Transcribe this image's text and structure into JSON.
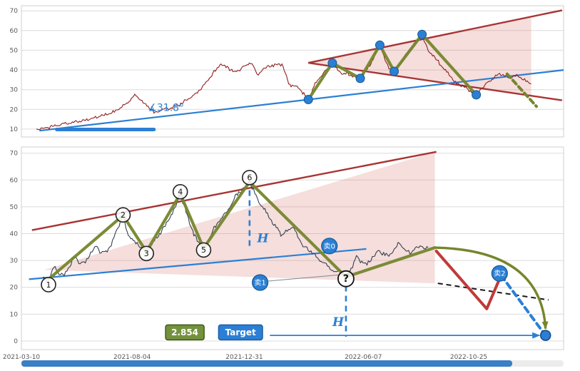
{
  "window": {
    "background": "#ffffff"
  },
  "colors": {
    "blue": "#2b7fd4",
    "green": "#75862c",
    "red": "#a83434",
    "grid": "#dcdcdc",
    "axis_text": "#595959",
    "black_dashed": "#1a1a1a",
    "projection_red": "#c03a3a"
  },
  "scrollbar": {
    "track_color": "#ececec",
    "thumb_color": "#3b7fc4"
  },
  "chart_data": [
    {
      "id": "top",
      "type": "line",
      "title": "",
      "xlabel": "",
      "ylabel": "",
      "x_domain_days_from_2021_03_10": [
        0,
        720
      ],
      "ylim": [
        6,
        72.6
      ],
      "grid": true,
      "legend": "none",
      "y_ticks": [
        10,
        20,
        30,
        40,
        50,
        60,
        70
      ],
      "x_ticks": [],
      "series": [
        {
          "name": "price",
          "color": "#8f2020",
          "noise": 0.9,
          "points": [
            [
              20,
              9.5
            ],
            [
              40,
              11.5
            ],
            [
              60,
              13
            ],
            [
              80,
              14
            ],
            [
              95,
              15.5
            ],
            [
              110,
              17
            ],
            [
              125,
              19
            ],
            [
              140,
              23
            ],
            [
              152,
              27.5
            ],
            [
              160,
              24
            ],
            [
              170,
              21
            ],
            [
              176,
              18.5
            ],
            [
              186,
              19.5
            ],
            [
              199,
              21
            ],
            [
              210,
              22.5
            ],
            [
              223,
              25.5
            ],
            [
              240,
              31
            ],
            [
              256,
              39
            ],
            [
              265,
              43
            ],
            [
              275,
              41
            ],
            [
              284,
              39
            ],
            [
              298,
              42
            ],
            [
              306,
              44
            ],
            [
              313,
              37.5
            ],
            [
              320,
              40
            ],
            [
              328,
              42
            ],
            [
              338,
              42.5
            ],
            [
              346,
              43
            ],
            [
              355,
              33
            ],
            [
              369,
              30.5
            ],
            [
              381,
              25
            ],
            [
              390,
              33
            ],
            [
              400,
              38
            ],
            [
              413,
              43.5
            ],
            [
              420,
              40
            ],
            [
              427,
              37.5
            ],
            [
              435,
              38
            ],
            [
              443,
              36
            ],
            [
              450,
              35.7
            ],
            [
              458,
              40
            ],
            [
              464,
              43
            ],
            [
              470,
              48
            ],
            [
              476,
              52.6
            ],
            [
              483,
              45
            ],
            [
              488,
              41
            ],
            [
              495,
              39.3
            ],
            [
              504,
              44
            ],
            [
              512,
              48.4
            ],
            [
              520,
              52
            ],
            [
              532,
              58
            ],
            [
              540,
              50
            ],
            [
              549,
              46.6
            ],
            [
              560,
              41
            ],
            [
              568,
              37.5
            ],
            [
              578,
              33
            ],
            [
              587,
              32
            ],
            [
              596,
              29
            ],
            [
              604,
              27.4
            ],
            [
              612,
              31
            ],
            [
              620,
              34
            ],
            [
              628,
              36
            ],
            [
              635,
              38.4
            ],
            [
              643,
              37
            ],
            [
              649,
              35.7
            ],
            [
              656,
              37
            ],
            [
              663,
              36.4
            ],
            [
              670,
              34.5
            ],
            [
              677,
              33
            ]
          ]
        }
      ],
      "overlays": {
        "trendline": {
          "points": [
            [
              24,
              9.2
            ],
            [
              720,
              40
            ]
          ]
        },
        "baseline": {
          "points": [
            [
              47,
              9.8
            ],
            [
              176,
              9.8
            ]
          ]
        },
        "angle_label": {
          "text": "∡31.8°",
          "d": 168,
          "v": 19.2
        },
        "wedge_fill": {
          "fill": "rgba(210,105,95,0.22)",
          "points": [
            [
              381,
              43.6
            ],
            [
              677,
              67.1
            ],
            [
              677,
              26.9
            ]
          ]
        },
        "wedge_upper": {
          "points": [
            [
              381,
              43.6
            ],
            [
              718,
              70.3
            ]
          ]
        },
        "wedge_lower": {
          "points": [
            [
              381,
              43.6
            ],
            [
              718,
              24.6
            ]
          ]
        },
        "zigzag": {
          "points": [
            [
              381,
              25
            ],
            [
              413,
              43.5
            ],
            [
              450,
              35.7
            ],
            [
              476,
              52.6
            ],
            [
              495,
              39.3
            ],
            [
              532,
              58
            ],
            [
              604,
              27.4
            ]
          ]
        },
        "zigzag_dashed": {
          "points": [
            [
              645,
              38
            ],
            [
              684,
              21.5
            ]
          ]
        },
        "pivot_dots": {
          "points": [
            [
              381,
              25
            ],
            [
              413,
              43.5
            ],
            [
              450,
              35.7
            ],
            [
              476,
              52.6
            ],
            [
              495,
              39.3
            ],
            [
              532,
              58
            ],
            [
              604,
              27.4
            ]
          ]
        }
      }
    },
    {
      "id": "bottom",
      "type": "line",
      "title": "",
      "xlabel": "",
      "ylabel": "",
      "x_domain_days_from_2021_03_10": [
        0,
        720
      ],
      "ylim": [
        -3.2,
        72.3
      ],
      "grid": true,
      "legend": "none",
      "y_ticks": [
        0,
        10,
        20,
        30,
        40,
        50,
        60,
        70
      ],
      "x_ticks": [
        {
          "d": 0,
          "label": "2021-03-10"
        },
        {
          "d": 147,
          "label": "2021-08-04"
        },
        {
          "d": 296,
          "label": "2021-12-31"
        },
        {
          "d": 454,
          "label": "2022-06-07"
        },
        {
          "d": 594,
          "label": "2022-10-25"
        }
      ],
      "series": [
        {
          "name": "price",
          "color": "#33424f",
          "noise": 0.85,
          "points": [
            [
              28,
              24
            ],
            [
              36,
              22.5
            ],
            [
              43,
              27.5
            ],
            [
              50,
              25
            ],
            [
              57,
              24.7
            ],
            [
              64,
              28
            ],
            [
              71,
              31.4
            ],
            [
              78,
              29
            ],
            [
              85,
              29.3
            ],
            [
              92,
              33
            ],
            [
              99,
              35.4
            ],
            [
              106,
              33
            ],
            [
              114,
              33.5
            ],
            [
              121,
              37
            ],
            [
              128,
              42
            ],
            [
              135,
              46.8
            ],
            [
              139,
              42
            ],
            [
              142,
              39.4
            ],
            [
              147,
              38
            ],
            [
              152,
              36.7
            ],
            [
              159,
              35
            ],
            [
              166,
              33.3
            ],
            [
              171,
              35
            ],
            [
              175,
              36.7
            ],
            [
              182,
              39
            ],
            [
              188,
              42
            ],
            [
              194,
              44
            ],
            [
              199,
              47.3
            ],
            [
              205,
              50
            ],
            [
              211,
              54.8
            ],
            [
              216,
              50
            ],
            [
              220,
              47.3
            ],
            [
              225,
              43
            ],
            [
              229,
              39.4
            ],
            [
              235,
              37
            ],
            [
              242,
              34.6
            ],
            [
              249,
              38
            ],
            [
              256,
              42
            ],
            [
              263,
              44.5
            ],
            [
              270,
              47.3
            ],
            [
              277,
              50
            ],
            [
              284,
              54
            ],
            [
              293,
              56
            ],
            [
              303,
              59.3
            ],
            [
              310,
              55
            ],
            [
              317,
              51.3
            ],
            [
              325,
              48
            ],
            [
              332,
              44.7
            ],
            [
              340,
              42
            ],
            [
              346,
              39.4
            ],
            [
              353,
              41
            ],
            [
              360,
              42.5
            ],
            [
              367,
              39
            ],
            [
              374,
              35.4
            ],
            [
              381,
              34
            ],
            [
              388,
              32.7
            ],
            [
              395,
              30.5
            ],
            [
              403,
              28.7
            ],
            [
              410,
              27
            ],
            [
              417,
              25.5
            ],
            [
              424,
              26.5
            ],
            [
              431,
              23.9
            ],
            [
              438,
              27
            ],
            [
              445,
              31.4
            ],
            [
              452,
              29.5
            ],
            [
              459,
              28.7
            ],
            [
              466,
              31
            ],
            [
              474,
              34
            ],
            [
              481,
              32.5
            ],
            [
              488,
              31.9
            ],
            [
              495,
              34
            ],
            [
              502,
              36.7
            ],
            [
              509,
              34
            ],
            [
              516,
              32.7
            ],
            [
              523,
              34.5
            ],
            [
              531,
              35.4
            ],
            [
              536,
              34.5
            ],
            [
              540,
              34.8
            ]
          ]
        }
      ],
      "overlays": {
        "trendline": {
          "points": [
            [
              10,
              23
            ],
            [
              458,
              34.3
            ]
          ]
        },
        "wedge_upper": {
          "points": [
            [
              14,
              41.3
            ],
            [
              551,
              70.5
            ]
          ]
        },
        "wedge_fill": {
          "fill": "rgba(210,105,95,0.22)",
          "points": [
            [
              30,
              26.5
            ],
            [
              549,
              70.5
            ],
            [
              549,
              21.5
            ]
          ]
        },
        "zigzag": {
          "points": [
            [
              36,
              23
            ],
            [
              135,
              46.8
            ],
            [
              166,
              33.3
            ],
            [
              211,
              54.8
            ],
            [
              242,
              34.6
            ],
            [
              303,
              59.3
            ],
            [
              431,
              23.9
            ],
            [
              549,
              34.8
            ]
          ]
        },
        "pivot_circles": [
          {
            "label": "1",
            "d": 36,
            "v": 21
          },
          {
            "label": "2",
            "d": 135,
            "v": 47
          },
          {
            "label": "3",
            "d": 166,
            "v": 32.6
          },
          {
            "label": "4",
            "d": 211,
            "v": 55.6
          },
          {
            "label": "5",
            "d": 242,
            "v": 33.9
          },
          {
            "label": "6",
            "d": 303,
            "v": 60.9
          }
        ],
        "question_circle": {
          "label": "?",
          "d": 431,
          "v": 23.2
        },
        "sell_markers": [
          {
            "label": "卖0",
            "d": 409,
            "v": 35.4
          },
          {
            "label": "卖1",
            "d": 317,
            "v": 21.8,
            "pointer_to": [
              421,
              24.6
            ]
          },
          {
            "label": "卖2",
            "d": 635,
            "v": 25.2
          }
        ],
        "h_measures": [
          {
            "label": "H",
            "d": 303,
            "v_from": 56.2,
            "v_to": 34.2,
            "label_d": 313,
            "label_v": 36.8
          },
          {
            "label": "H",
            "d": 431,
            "v_from": 20.6,
            "v_to": 1.6,
            "label_d": 413,
            "label_v": 5.6
          }
        ],
        "target_arrow": {
          "v": 2.1,
          "d_from": 330,
          "d_to": 688
        },
        "target_dot": {
          "d": 696,
          "v": 2.1
        },
        "value_box": {
          "text": "2.854",
          "d": 217,
          "v": 3.2,
          "bg": "#74923d",
          "border": "#3f5a16",
          "fg": "#ffffff"
        },
        "target_box": {
          "text": "Target",
          "d": 291,
          "v": 3.2,
          "bg": "#2b7fd4",
          "border": "#1c5ea6",
          "fg": "#ffffff"
        },
        "projection_curve": {
          "p0": [
            549,
            34.8
          ],
          "c": [
            690,
            34
          ],
          "p1": [
            696,
            4.6
          ]
        },
        "projection_black_dashed": {
          "points": [
            [
              553,
              21.5
            ],
            [
              700,
              15.3
            ]
          ]
        },
        "projection_red": {
          "points": [
            [
              551,
              33.5
            ],
            [
              618,
              12
            ],
            [
              637,
              24.5
            ]
          ]
        },
        "projection_blue_dashed": {
          "points": [
            [
              637,
              24.5
            ],
            [
              693,
              3.2
            ]
          ]
        }
      }
    }
  ]
}
